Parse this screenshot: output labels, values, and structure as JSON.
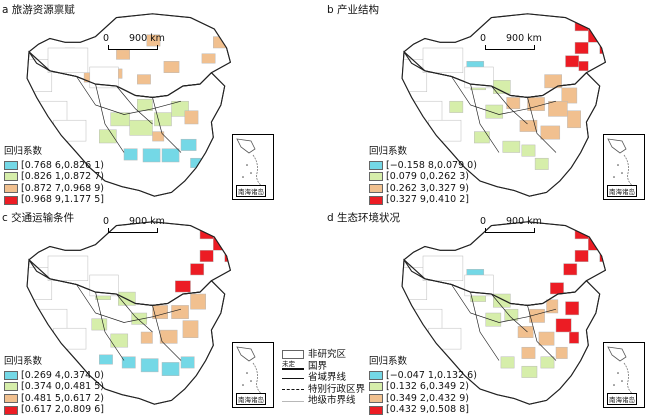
{
  "panels": [
    {
      "title": "a 旅游资源禀赋",
      "legend_title": "回归系数",
      "classes": [
        {
          "label": "[0.768 6,0.826 1)",
          "color": "#74d8e6"
        },
        {
          "label": "[0.826 1,0.872 7)",
          "color": "#d6eeaa"
        },
        {
          "label": "[0.872 7,0.968 9)",
          "color": "#f1c08f"
        },
        {
          "label": "[0.968 9,1.177 5]",
          "color": "#ec1c24"
        }
      ]
    },
    {
      "title": "b 产业结构",
      "legend_title": "回归系数",
      "classes": [
        {
          "label": "[−0.158 8,0.079 0)",
          "color": "#74d8e6"
        },
        {
          "label": "[0.079 0,0.262 3)",
          "color": "#d6eeaa"
        },
        {
          "label": "[0.262 3,0.327 9)",
          "color": "#f1c08f"
        },
        {
          "label": "[0.327 9,0.410 2]",
          "color": "#ec1c24"
        }
      ]
    },
    {
      "title": "c 交通运输条件",
      "legend_title": "回归系数",
      "classes": [
        {
          "label": "[0.269 4,0.374 0)",
          "color": "#74d8e6"
        },
        {
          "label": "[0.374 0,0.481 5)",
          "color": "#d6eeaa"
        },
        {
          "label": "[0.481 5,0.617 2)",
          "color": "#f1c08f"
        },
        {
          "label": "[0.617 2,0.809 6]",
          "color": "#ec1c24"
        }
      ]
    },
    {
      "title": "d 生态环境状况",
      "legend_title": "回归系数",
      "classes": [
        {
          "label": "[−0.047 1,0.132 6)",
          "color": "#74d8e6"
        },
        {
          "label": "[0.132 6,0.349 2)",
          "color": "#d6eeaa"
        },
        {
          "label": "[0.349 2,0.432 9)",
          "color": "#f1c08f"
        },
        {
          "label": "[0.432 9,0.508 8]",
          "color": "#ec1c24"
        }
      ]
    }
  ],
  "scale": {
    "zero": "0",
    "distance": "900 km"
  },
  "inset_caption": "南海诸岛",
  "base_legend": {
    "non_study": "非研究区",
    "undetermined": "未定",
    "national_boundary": "国界",
    "provincial_boundary": "省域界线",
    "sar_boundary": "特别行政区界",
    "city_boundary": "地级市界线"
  },
  "colors": {
    "outline": "#222222",
    "non_study_fill": "#ffffff",
    "city_line": "#b8b8b8"
  }
}
